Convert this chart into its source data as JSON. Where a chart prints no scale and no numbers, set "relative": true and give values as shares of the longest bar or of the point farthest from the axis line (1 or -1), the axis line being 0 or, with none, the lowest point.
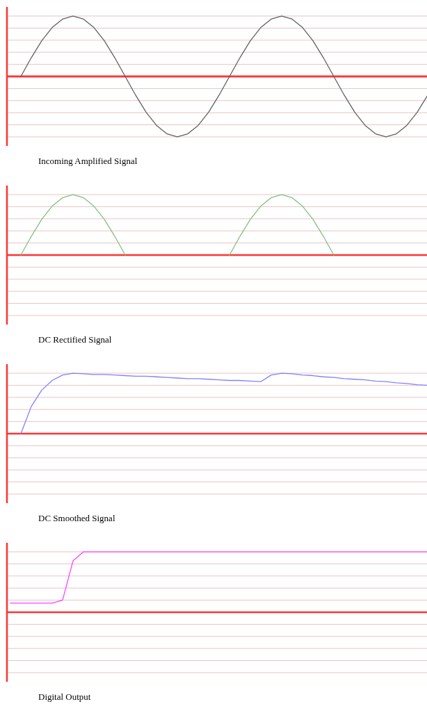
{
  "chart_data": [
    {
      "type": "line",
      "xlabel": "Incoming Amplified Signal",
      "relative": true,
      "ref_lines": [
        {
          "axis": "y",
          "value": 0,
          "color": "#ff3333"
        }
      ],
      "grid": "y",
      "categories": [
        null,
        null,
        null,
        null,
        null,
        null,
        null,
        null,
        null,
        null,
        null,
        null,
        null,
        null,
        null,
        null,
        null,
        null,
        null,
        null,
        null,
        null,
        null,
        null,
        null,
        null,
        null,
        null,
        null,
        null,
        null,
        null,
        null,
        null,
        null,
        null,
        null,
        null,
        null,
        null,
        null
      ],
      "series": [
        {
          "color": "#606060",
          "values": [
            null,
            0,
            0.31,
            0.59,
            0.81,
            0.95,
            1,
            0.95,
            0.81,
            0.59,
            0.31,
            0,
            -0.31,
            -0.59,
            -0.81,
            -0.95,
            -1,
            -0.95,
            -0.81,
            -0.59,
            -0.31,
            0,
            0.31,
            0.59,
            0.81,
            0.95,
            1,
            0.95,
            0.81,
            0.59,
            0.31,
            0,
            -0.31,
            -0.59,
            -0.81,
            -0.95,
            -1,
            -0.95,
            -0.81,
            -0.59,
            -0.31
          ]
        }
      ]
    },
    {
      "type": "line",
      "xlabel": "DC Rectified Signal",
      "relative": true,
      "grid": "y",
      "categories": [
        null,
        null,
        null,
        null,
        null,
        null,
        null,
        null,
        null,
        null,
        null,
        null,
        null,
        null,
        null,
        null,
        null,
        null,
        null,
        null,
        null,
        null,
        null,
        null,
        null,
        null,
        null,
        null,
        null,
        null,
        null,
        null,
        null,
        null,
        null,
        null,
        null,
        null,
        null,
        null,
        null
      ],
      "series": [
        {
          "color": "#80c080",
          "values": [
            null,
            0,
            0.31,
            0.59,
            0.81,
            0.95,
            1,
            0.95,
            0.81,
            0.59,
            0.31,
            0,
            null,
            null,
            null,
            null,
            null,
            null,
            null,
            null,
            null,
            0,
            0.31,
            0.59,
            0.81,
            0.95,
            1,
            0.95,
            0.81,
            0.59,
            0.31,
            0,
            null,
            null,
            null,
            null,
            null,
            null,
            null,
            null,
            null
          ]
        }
      ]
    },
    {
      "type": "line",
      "xlabel": "DC Smoothed Signal",
      "relative": true,
      "grid": "y",
      "categories": [
        null,
        null,
        null,
        null,
        null,
        null,
        null,
        null,
        null,
        null,
        null,
        null,
        null,
        null,
        null,
        null,
        null,
        null,
        null,
        null,
        null,
        null,
        null,
        null,
        null,
        null,
        null,
        null,
        null,
        null,
        null,
        null,
        null,
        null,
        null,
        null,
        null,
        null,
        null,
        null,
        null
      ],
      "series": [
        {
          "color": "#8080ff",
          "values": [
            null,
            0,
            0.45,
            0.72,
            0.88,
            0.97,
            1,
            0.99,
            0.98,
            0.98,
            0.97,
            0.96,
            0.95,
            0.95,
            0.94,
            0.93,
            0.92,
            0.91,
            0.91,
            0.9,
            0.89,
            0.88,
            0.88,
            0.87,
            0.86,
            0.97,
            1,
            0.99,
            0.97,
            0.96,
            0.94,
            0.93,
            0.91,
            0.9,
            0.89,
            0.87,
            0.86,
            0.84,
            0.83,
            0.81,
            0.8
          ]
        }
      ]
    },
    {
      "type": "line",
      "xlabel": "Digital Output",
      "relative": true,
      "grid": "y",
      "categories": [
        null,
        null,
        null,
        null,
        null,
        null,
        null,
        null,
        null,
        null,
        null,
        null,
        null,
        null,
        null,
        null,
        null,
        null,
        null,
        null,
        null,
        null,
        null,
        null,
        null,
        null,
        null,
        null,
        null,
        null,
        null,
        null,
        null,
        null,
        null,
        null,
        null,
        null,
        null,
        null,
        null
      ],
      "series": [
        {
          "color": "#ff40ff",
          "values": [
            0.15,
            0.15,
            0.15,
            0.15,
            0.15,
            0.2,
            0.85,
            1,
            1,
            1,
            1,
            1,
            1,
            1,
            1,
            1,
            1,
            1,
            1,
            1,
            1,
            1,
            1,
            1,
            1,
            1,
            1,
            1,
            1,
            1,
            1,
            1,
            1,
            1,
            1,
            1,
            1,
            1,
            1,
            1,
            1
          ]
        }
      ]
    }
  ]
}
